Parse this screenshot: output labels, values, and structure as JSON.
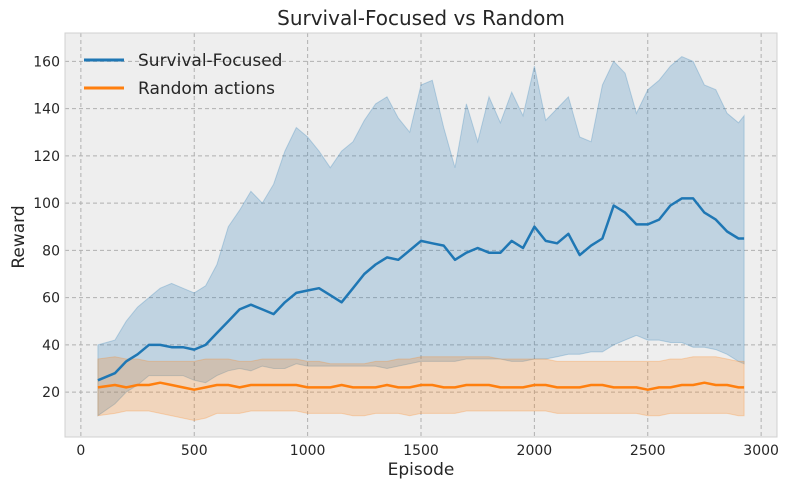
{
  "chart_data": {
    "type": "line",
    "title": "Survival-Focused vs Random",
    "xlabel": "Episode",
    "ylabel": "Reward",
    "xlim": [
      -70,
      3070
    ],
    "ylim": [
      1,
      172
    ],
    "xticks": [
      0,
      500,
      1000,
      1500,
      2000,
      2500,
      3000
    ],
    "yticks": [
      20,
      40,
      60,
      80,
      100,
      120,
      140,
      160
    ],
    "grid": true,
    "legend_position": "top-left",
    "series": [
      {
        "name": "Survival-Focused",
        "color": "#1f77b4",
        "x": [
          75,
          150,
          200,
          250,
          300,
          350,
          400,
          450,
          500,
          550,
          600,
          650,
          700,
          750,
          800,
          850,
          900,
          950,
          1000,
          1050,
          1100,
          1150,
          1200,
          1250,
          1300,
          1350,
          1400,
          1450,
          1500,
          1550,
          1600,
          1650,
          1700,
          1750,
          1800,
          1850,
          1900,
          1950,
          2000,
          2050,
          2100,
          2150,
          2200,
          2250,
          2300,
          2350,
          2400,
          2450,
          2500,
          2550,
          2600,
          2650,
          2700,
          2750,
          2800,
          2850,
          2900,
          2925
        ],
        "y": [
          25,
          28,
          33,
          36,
          40,
          40,
          39,
          39,
          38,
          40,
          45,
          50,
          55,
          57,
          55,
          53,
          58,
          62,
          63,
          64,
          61,
          58,
          64,
          70,
          74,
          77,
          76,
          80,
          84,
          83,
          82,
          76,
          79,
          81,
          79,
          79,
          84,
          81,
          90,
          84,
          83,
          87,
          78,
          82,
          85,
          99,
          96,
          91,
          91,
          93,
          99,
          102,
          102,
          96,
          93,
          88,
          85,
          85
        ],
        "upper": [
          40,
          42,
          50,
          56,
          60,
          64,
          66,
          64,
          62,
          65,
          74,
          90,
          97,
          105,
          100,
          108,
          122,
          132,
          128,
          122,
          115,
          122,
          126,
          135,
          142,
          145,
          136,
          130,
          150,
          152,
          132,
          115,
          142,
          126,
          145,
          134,
          147,
          137,
          158,
          135,
          140,
          145,
          128,
          126,
          150,
          160,
          155,
          138,
          148,
          152,
          158,
          162,
          160,
          150,
          148,
          138,
          134,
          137
        ],
        "lower": [
          10,
          15,
          20,
          23,
          27,
          27,
          27,
          27,
          25,
          24,
          27,
          29,
          30,
          29,
          31,
          30,
          30,
          32,
          31,
          31,
          31,
          31,
          31,
          31,
          31,
          30,
          31,
          32,
          33,
          33,
          33,
          33,
          34,
          34,
          34,
          34,
          33,
          33,
          34,
          34,
          35,
          36,
          36,
          37,
          37,
          40,
          42,
          44,
          42,
          42,
          41,
          41,
          39,
          39,
          38,
          36,
          33,
          32
        ]
      },
      {
        "name": "Random actions",
        "color": "#ff7f0e",
        "x": [
          75,
          150,
          200,
          250,
          300,
          350,
          400,
          450,
          500,
          550,
          600,
          650,
          700,
          750,
          800,
          850,
          900,
          950,
          1000,
          1050,
          1100,
          1150,
          1200,
          1250,
          1300,
          1350,
          1400,
          1450,
          1500,
          1550,
          1600,
          1650,
          1700,
          1750,
          1800,
          1850,
          1900,
          1950,
          2000,
          2050,
          2100,
          2150,
          2200,
          2250,
          2300,
          2350,
          2400,
          2450,
          2500,
          2550,
          2600,
          2650,
          2700,
          2750,
          2800,
          2850,
          2900,
          2925
        ],
        "y": [
          22,
          23,
          22,
          23,
          23,
          24,
          23,
          22,
          21,
          22,
          23,
          23,
          22,
          23,
          23,
          23,
          23,
          23,
          22,
          22,
          22,
          23,
          22,
          22,
          22,
          23,
          22,
          22,
          23,
          23,
          22,
          22,
          23,
          23,
          23,
          22,
          22,
          22,
          23,
          23,
          22,
          22,
          22,
          23,
          23,
          22,
          22,
          22,
          21,
          22,
          22,
          23,
          23,
          24,
          23,
          23,
          22,
          22
        ],
        "upper": [
          34,
          35,
          34,
          34,
          33,
          33,
          33,
          33,
          33,
          34,
          34,
          34,
          33,
          33,
          34,
          34,
          34,
          34,
          33,
          33,
          32,
          32,
          32,
          32,
          33,
          33,
          34,
          34,
          35,
          35,
          35,
          35,
          35,
          35,
          35,
          34,
          34,
          34,
          34,
          34,
          33,
          33,
          33,
          33,
          33,
          33,
          33,
          33,
          33,
          33,
          34,
          34,
          35,
          35,
          35,
          34,
          33,
          33
        ],
        "lower": [
          10,
          11,
          12,
          12,
          12,
          11,
          10,
          9,
          8,
          9,
          11,
          11,
          11,
          12,
          12,
          12,
          12,
          12,
          11,
          11,
          11,
          11,
          10,
          10,
          11,
          11,
          11,
          10,
          11,
          11,
          11,
          11,
          12,
          12,
          12,
          12,
          12,
          12,
          12,
          12,
          11,
          11,
          11,
          11,
          11,
          11,
          11,
          11,
          10,
          10,
          11,
          11,
          11,
          11,
          11,
          11,
          10,
          10
        ]
      }
    ]
  }
}
